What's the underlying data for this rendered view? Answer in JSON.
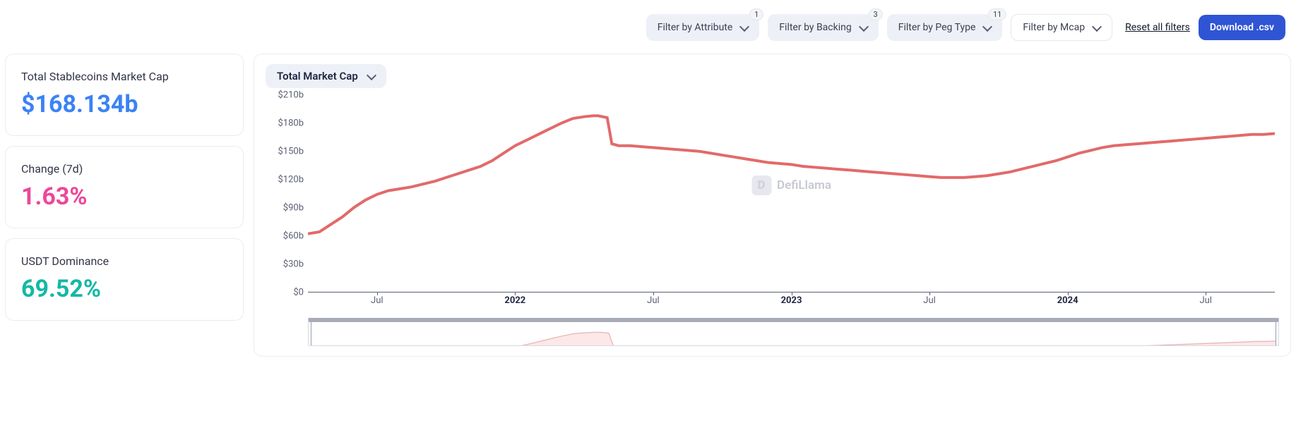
{
  "toolbar": {
    "filters": [
      {
        "label": "Filter by Attribute",
        "badge": "1",
        "style": "tinted"
      },
      {
        "label": "Filter by Backing",
        "badge": "3",
        "style": "tinted"
      },
      {
        "label": "Filter by Peg Type",
        "badge": "11",
        "style": "tinted"
      },
      {
        "label": "Filter by Mcap",
        "badge": null,
        "style": "plain"
      }
    ],
    "reset_label": "Reset all filters",
    "download_label": "Download .csv"
  },
  "stats": {
    "market_cap": {
      "label": "Total Stablecoins Market Cap",
      "value": "$168.134b",
      "color": "#3b82f6"
    },
    "change_7d": {
      "label": "Change (7d)",
      "value": "1.63%",
      "color": "#ec4899"
    },
    "usdt_dominance": {
      "label": "USDT Dominance",
      "value": "69.52%",
      "color": "#14b8a6"
    }
  },
  "chart": {
    "metric_selector": "Total Market Cap",
    "type": "line",
    "line_color": "#e26a6a",
    "line_width": 1.2,
    "background_color": "#ffffff",
    "axis_color": "#5b5f73",
    "watermark_text": "DefiLlama",
    "watermark_color": "#c7c9d1",
    "y": {
      "min": 0,
      "max": 210,
      "ticks": [
        0,
        30,
        60,
        90,
        120,
        150,
        180,
        210
      ],
      "tick_labels": [
        "$0",
        "$30b",
        "$60b",
        "$90b",
        "$120b",
        "$150b",
        "$180b",
        "$210b"
      ]
    },
    "x": {
      "min": 0,
      "max": 42,
      "ticks": [
        {
          "pos": 3,
          "label": "Jul",
          "bold": false
        },
        {
          "pos": 9,
          "label": "2022",
          "bold": true
        },
        {
          "pos": 15,
          "label": "Jul",
          "bold": false
        },
        {
          "pos": 21,
          "label": "2023",
          "bold": true
        },
        {
          "pos": 27,
          "label": "Jul",
          "bold": false
        },
        {
          "pos": 33,
          "label": "2024",
          "bold": true
        },
        {
          "pos": 39,
          "label": "Jul",
          "bold": false
        }
      ]
    },
    "series": [
      [
        0,
        62
      ],
      [
        0.5,
        64
      ],
      [
        1,
        72
      ],
      [
        1.5,
        80
      ],
      [
        2,
        90
      ],
      [
        2.5,
        98
      ],
      [
        3,
        104
      ],
      [
        3.5,
        108
      ],
      [
        4,
        110
      ],
      [
        4.5,
        112
      ],
      [
        5,
        115
      ],
      [
        5.5,
        118
      ],
      [
        6,
        122
      ],
      [
        6.5,
        126
      ],
      [
        7,
        130
      ],
      [
        7.5,
        134
      ],
      [
        8,
        140
      ],
      [
        8.5,
        148
      ],
      [
        9,
        156
      ],
      [
        9.5,
        162
      ],
      [
        10,
        168
      ],
      [
        10.5,
        174
      ],
      [
        11,
        180
      ],
      [
        11.5,
        185
      ],
      [
        12,
        187
      ],
      [
        12.4,
        188
      ],
      [
        12.6,
        188
      ],
      [
        13,
        186
      ],
      [
        13.2,
        158
      ],
      [
        13.5,
        156
      ],
      [
        14,
        156
      ],
      [
        14.5,
        155
      ],
      [
        15,
        154
      ],
      [
        15.5,
        153
      ],
      [
        16,
        152
      ],
      [
        16.5,
        151
      ],
      [
        17,
        150
      ],
      [
        17.5,
        148
      ],
      [
        18,
        146
      ],
      [
        18.5,
        144
      ],
      [
        19,
        142
      ],
      [
        19.5,
        140
      ],
      [
        20,
        138
      ],
      [
        20.5,
        137
      ],
      [
        21,
        136
      ],
      [
        21.5,
        134
      ],
      [
        22,
        133
      ],
      [
        22.5,
        132
      ],
      [
        23,
        131
      ],
      [
        23.5,
        130
      ],
      [
        24,
        129
      ],
      [
        24.5,
        128
      ],
      [
        25,
        127
      ],
      [
        25.5,
        126
      ],
      [
        26,
        125
      ],
      [
        26.5,
        124
      ],
      [
        27,
        123
      ],
      [
        27.5,
        122
      ],
      [
        28,
        122
      ],
      [
        28.5,
        122
      ],
      [
        29,
        123
      ],
      [
        29.5,
        124
      ],
      [
        30,
        126
      ],
      [
        30.5,
        128
      ],
      [
        31,
        131
      ],
      [
        31.5,
        134
      ],
      [
        32,
        137
      ],
      [
        32.5,
        140
      ],
      [
        33,
        144
      ],
      [
        33.5,
        148
      ],
      [
        34,
        151
      ],
      [
        34.5,
        154
      ],
      [
        35,
        156
      ],
      [
        35.5,
        157
      ],
      [
        36,
        158
      ],
      [
        36.5,
        159
      ],
      [
        37,
        160
      ],
      [
        37.5,
        161
      ],
      [
        38,
        162
      ],
      [
        38.5,
        163
      ],
      [
        39,
        164
      ],
      [
        39.5,
        165
      ],
      [
        40,
        166
      ],
      [
        40.5,
        167
      ],
      [
        41,
        168
      ],
      [
        41.5,
        168
      ],
      [
        42,
        169
      ]
    ],
    "brush": {
      "fill_color": "#fce8e8",
      "stroke_color": "#e9b8b8",
      "bar_color": "#a8abb8"
    }
  }
}
